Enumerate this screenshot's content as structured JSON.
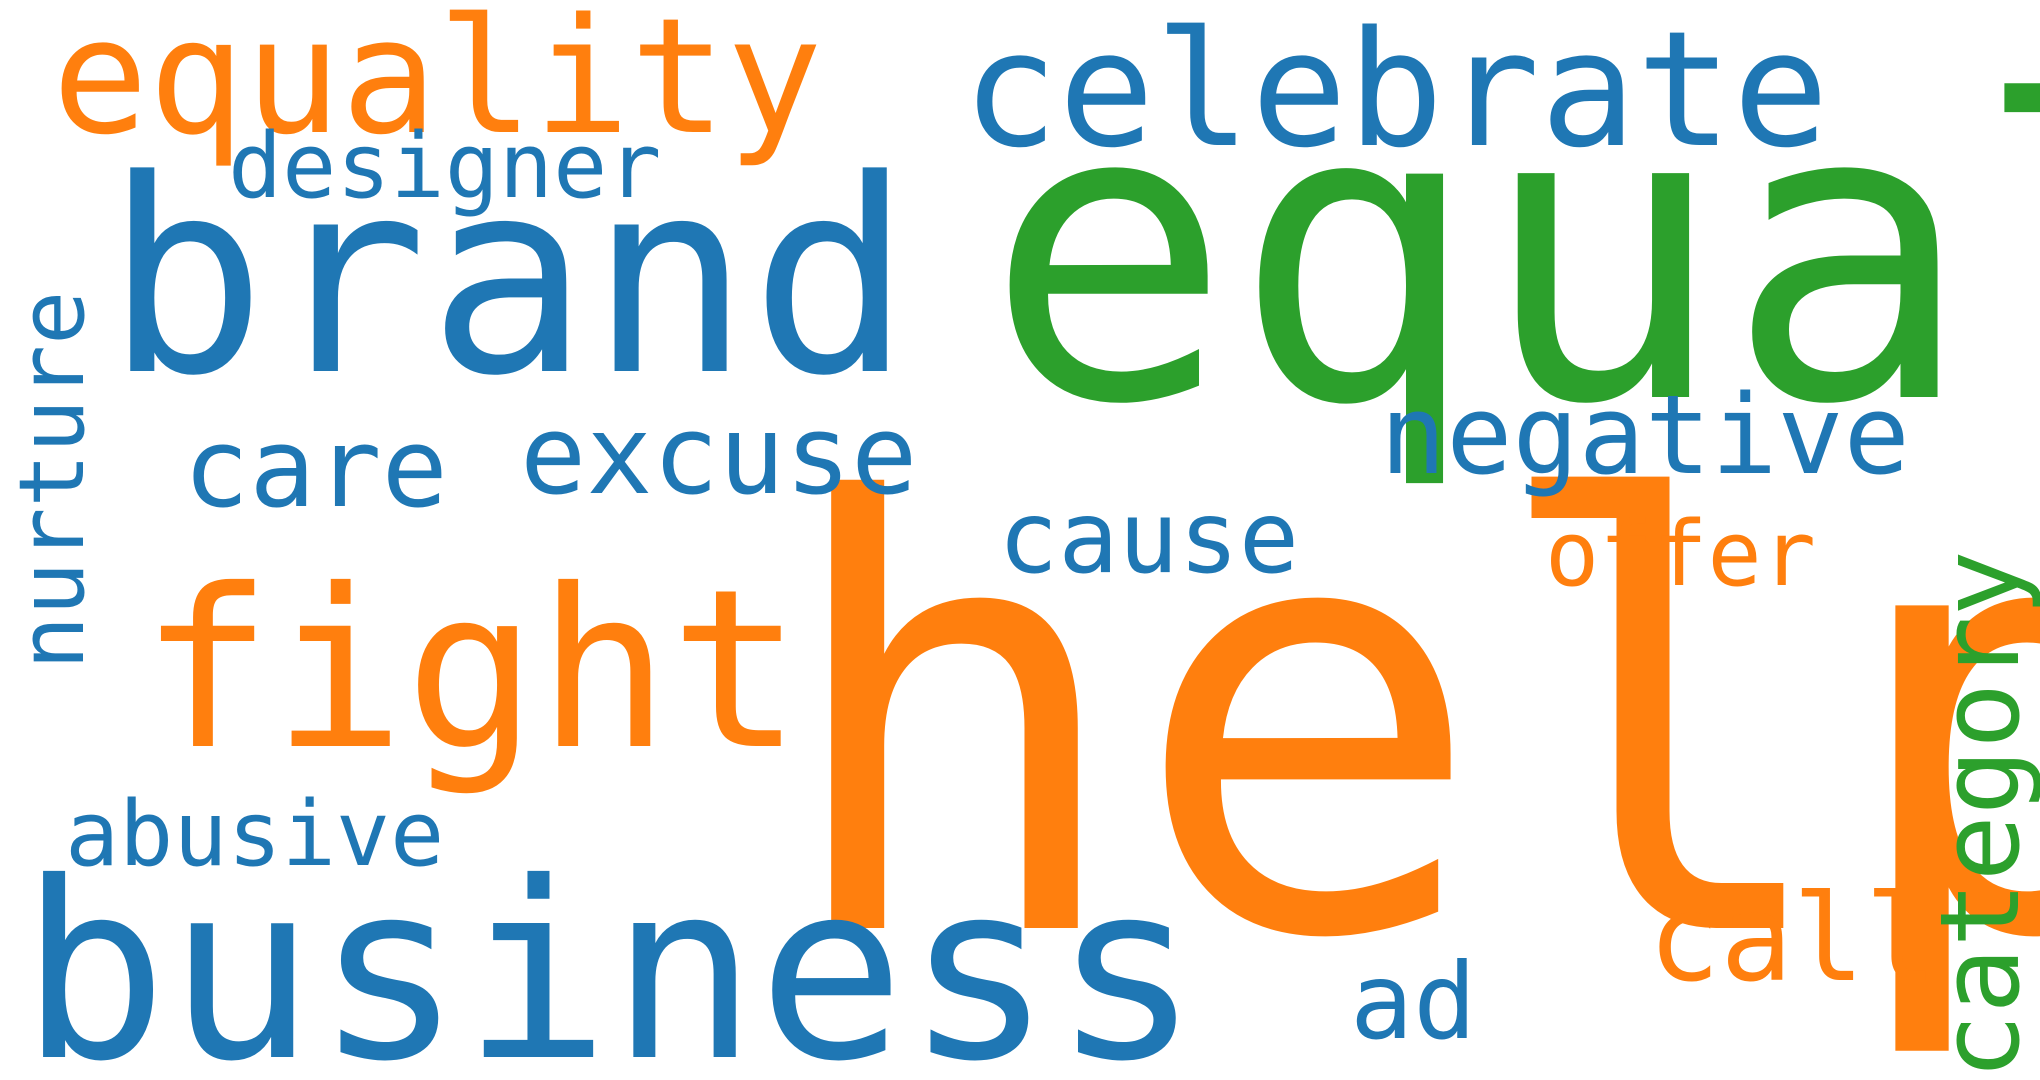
{
  "colors": {
    "background": "#ffffff",
    "blue": "#1f77b4",
    "orange": "#ff7f0e",
    "green": "#2ca02c"
  },
  "words": {
    "help": "help",
    "equal": "equal",
    "brand": "brand",
    "business": "business",
    "fight": "fight",
    "celebrate": "celebrate",
    "equality": "equality",
    "negative": "negative",
    "excuse": "excuse",
    "care": "care",
    "cause": "cause",
    "designer": "designer",
    "abusive": "abusive",
    "offer": "offer",
    "call": "call",
    "ad": "ad",
    "nurture": "nurture",
    "category": "category"
  }
}
